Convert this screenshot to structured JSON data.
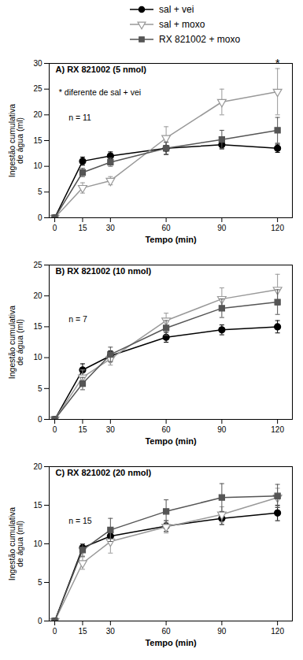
{
  "chart_data": [
    {
      "type": "line",
      "title": "A) RX 821002 (5 nmol)",
      "x": [
        0,
        15,
        30,
        60,
        90,
        120
      ],
      "xlabel": "Tempo (min)",
      "ylabel": "Ingestão cumulativa\nde água (ml)",
      "xlim": [
        -3,
        128
      ],
      "xticks": [
        0,
        15,
        30,
        60,
        90,
        120
      ],
      "ylim": [
        0,
        30
      ],
      "yticks": [
        0,
        5,
        10,
        15,
        20,
        25,
        30
      ],
      "grid": false,
      "legend": "top",
      "series": [
        {
          "name": "sal + vei",
          "color": "#000000",
          "marker": "circle",
          "values": [
            0,
            11.0,
            12.0,
            13.5,
            14.2,
            13.5
          ],
          "yerr": [
            0,
            0.8,
            0.8,
            1.2,
            0.8,
            0.8
          ]
        },
        {
          "name": "sal + moxo",
          "color": "#999999",
          "marker": "triangle-down-open",
          "values": [
            0,
            5.8,
            7.2,
            15.5,
            22.5,
            24.5
          ],
          "yerr": [
            0,
            1.0,
            0.8,
            2.2,
            2.5,
            4.5
          ]
        },
        {
          "name": "RX 821002 + moxo",
          "color": "#555555",
          "marker": "square",
          "values": [
            0,
            8.8,
            10.8,
            13.5,
            15.2,
            17.0
          ],
          "yerr": [
            0,
            0.8,
            0.8,
            1.2,
            1.8,
            2.5
          ]
        }
      ],
      "annotations": [
        "* diferente de sal + vei",
        "n = 11",
        {
          "text": "*",
          "x": 120,
          "y": 29.0
        }
      ]
    },
    {
      "type": "line",
      "title": "B) RX 821002 (10 nmol)",
      "x": [
        0,
        15,
        30,
        60,
        90,
        120
      ],
      "xlabel": "Tempo (min)",
      "ylabel": "Ingestão cumulativa\nde água (ml)",
      "xlim": [
        -3,
        128
      ],
      "xticks": [
        0,
        15,
        30,
        60,
        90,
        120
      ],
      "ylim": [
        0,
        25
      ],
      "yticks": [
        0,
        5,
        10,
        15,
        20,
        25
      ],
      "grid": false,
      "series": [
        {
          "name": "sal + vei",
          "color": "#000000",
          "marker": "circle",
          "values": [
            0,
            8.0,
            10.3,
            13.3,
            14.5,
            15.0
          ],
          "yerr": [
            0,
            1.0,
            0.8,
            0.8,
            0.8,
            1.0
          ]
        },
        {
          "name": "sal + moxo",
          "color": "#999999",
          "marker": "triangle-down-open",
          "values": [
            0,
            6.8,
            9.8,
            16.0,
            19.5,
            21.0
          ],
          "yerr": [
            0,
            1.2,
            1.0,
            1.2,
            1.8,
            2.5
          ]
        },
        {
          "name": "RX 821002 + moxo",
          "color": "#555555",
          "marker": "square",
          "values": [
            0,
            5.8,
            10.5,
            14.8,
            18.0,
            19.0
          ],
          "yerr": [
            0,
            1.0,
            1.2,
            1.2,
            1.5,
            2.0
          ]
        }
      ],
      "annotations": [
        "n = 7"
      ]
    },
    {
      "type": "line",
      "title": "C) RX 821002 (20 nmol)",
      "x": [
        0,
        15,
        30,
        60,
        90,
        120
      ],
      "xlabel": "Tempo (min)",
      "ylabel": "Ingestão cumulativa\nde água (ml)",
      "xlim": [
        -3,
        128
      ],
      "xticks": [
        0,
        15,
        30,
        60,
        90,
        120
      ],
      "ylim": [
        0,
        20
      ],
      "yticks": [
        0,
        5,
        10,
        15,
        20
      ],
      "grid": false,
      "series": [
        {
          "name": "sal + vei",
          "color": "#000000",
          "marker": "circle",
          "values": [
            0,
            9.5,
            11.0,
            12.3,
            13.3,
            14.0
          ],
          "yerr": [
            0,
            0.5,
            0.6,
            0.7,
            0.8,
            1.0
          ]
        },
        {
          "name": "sal + moxo",
          "color": "#999999",
          "marker": "triangle-down-open",
          "values": [
            0,
            7.5,
            10.3,
            12.2,
            13.8,
            16.0
          ],
          "yerr": [
            0,
            0.8,
            1.5,
            0.8,
            1.0,
            1.2
          ]
        },
        {
          "name": "RX 821002 + moxo",
          "color": "#555555",
          "marker": "square",
          "values": [
            0,
            9.2,
            11.8,
            14.2,
            16.0,
            16.2
          ],
          "yerr": [
            0,
            0.8,
            1.5,
            1.5,
            1.8,
            1.5
          ]
        }
      ],
      "annotations": [
        "n = 15"
      ]
    }
  ]
}
